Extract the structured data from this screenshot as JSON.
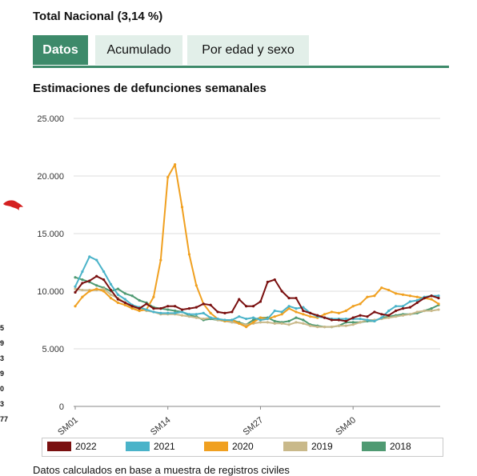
{
  "header": {
    "title": "Total Nacional (3,14 %)"
  },
  "tabs": [
    {
      "label": "Datos",
      "active": true
    },
    {
      "label": "Acumulado",
      "active": false
    },
    {
      "label": "Por edad y sexo",
      "active": false
    }
  ],
  "section_title": "Estimaciones de defunciones semanales",
  "left_edge_digits": [
    "5",
    "9",
    "3",
    "9",
    "0",
    "3",
    "77"
  ],
  "footer_text": "Datos calculados en base a muestra de registros civiles",
  "chart_data": {
    "type": "line",
    "title": "Estimaciones de defunciones semanales",
    "x": [
      "SM01",
      "SM02",
      "SM03",
      "SM04",
      "SM05",
      "SM06",
      "SM07",
      "SM08",
      "SM09",
      "SM10",
      "SM11",
      "SM12",
      "SM13",
      "SM14",
      "SM15",
      "SM16",
      "SM17",
      "SM18",
      "SM19",
      "SM20",
      "SM21",
      "SM22",
      "SM23",
      "SM24",
      "SM25",
      "SM26",
      "SM27",
      "SM28",
      "SM29",
      "SM30",
      "SM31",
      "SM32",
      "SM33",
      "SM34",
      "SM35",
      "SM36",
      "SM37",
      "SM38",
      "SM39",
      "SM40",
      "SM41",
      "SM42",
      "SM43",
      "SM44",
      "SM45",
      "SM46",
      "SM47",
      "SM48",
      "SM49",
      "SM50",
      "SM51",
      "SM52"
    ],
    "x_tick_labels": [
      "SM01",
      "SM14",
      "SM27",
      "SM40"
    ],
    "y_ticks": [
      0,
      5000,
      10000,
      15000,
      20000,
      25000
    ],
    "y_tick_labels": [
      "0",
      "5.000",
      "10.000",
      "15.000",
      "20.000",
      "25.000"
    ],
    "ylim": [
      0,
      25000
    ],
    "grid": true,
    "legend_position": "bottom",
    "series": [
      {
        "name": "2022",
        "color": "#7a1010",
        "values": [
          9900,
          10700,
          10900,
          11300,
          11000,
          10100,
          9300,
          9000,
          8700,
          8500,
          8900,
          8500,
          8500,
          8700,
          8700,
          8400,
          8500,
          8600,
          8900,
          8800,
          8200,
          8100,
          8200,
          9300,
          8700,
          8700,
          9100,
          10800,
          11000,
          10000,
          9400,
          9400,
          8300,
          8100,
          7900,
          7700,
          7500,
          7500,
          7400,
          7700,
          7900,
          7800,
          8200,
          8000,
          7900,
          8300,
          8500,
          8600,
          9000,
          9400,
          9600,
          9400
        ]
      },
      {
        "name": "2021",
        "color": "#4ab3c9",
        "values": [
          10400,
          11700,
          13000,
          12700,
          11700,
          10600,
          9700,
          9300,
          8800,
          8600,
          8400,
          8200,
          8100,
          8100,
          8100,
          8200,
          8000,
          8000,
          8100,
          7700,
          7600,
          7500,
          7500,
          7800,
          7600,
          7700,
          7500,
          7600,
          8300,
          8200,
          8700,
          8500,
          8600,
          8100,
          7800,
          7700,
          7600,
          7600,
          7600,
          7600,
          7600,
          7500,
          7400,
          7700,
          8300,
          8700,
          8700,
          9100,
          9200,
          9500,
          9600,
          9600
        ]
      },
      {
        "name": "2020",
        "color": "#f0a020",
        "values": [
          8700,
          9500,
          10000,
          10200,
          10000,
          9400,
          9000,
          8800,
          8500,
          8300,
          8400,
          9500,
          12700,
          19900,
          21000,
          17300,
          13200,
          10500,
          8900,
          8100,
          7600,
          7400,
          7500,
          7200,
          6900,
          7300,
          7700,
          7600,
          7800,
          8000,
          8500,
          8200,
          8000,
          7800,
          7700,
          8000,
          8200,
          8100,
          8300,
          8700,
          8900,
          9500,
          9600,
          10300,
          10100,
          9800,
          9700,
          9600,
          9500,
          9400,
          9300,
          8900
        ]
      },
      {
        "name": "2019",
        "color": "#c9b98a",
        "values": [
          10200,
          10100,
          10100,
          10100,
          10200,
          9700,
          9400,
          9000,
          8600,
          8500,
          8300,
          8200,
          8000,
          8000,
          8000,
          7900,
          7800,
          7700,
          7600,
          7700,
          7500,
          7400,
          7300,
          7200,
          7100,
          7200,
          7300,
          7300,
          7200,
          7200,
          7100,
          7300,
          7200,
          7000,
          6900,
          6900,
          6900,
          7000,
          7000,
          7100,
          7300,
          7500,
          7500,
          7600,
          7700,
          7800,
          7900,
          8000,
          8200,
          8300,
          8300,
          8400
        ]
      },
      {
        "name": "2018",
        "color": "#4f9a72",
        "values": [
          11200,
          11000,
          10800,
          10500,
          10300,
          10000,
          10200,
          9800,
          9600,
          9200,
          9000,
          8600,
          8500,
          8400,
          8300,
          8200,
          7900,
          7800,
          7500,
          7600,
          7500,
          7400,
          7500,
          7300,
          7100,
          7500,
          7700,
          7700,
          7400,
          7300,
          7400,
          7700,
          7500,
          7100,
          7000,
          6900,
          6900,
          7000,
          7300,
          7300,
          7300,
          7400,
          7400,
          7700,
          7800,
          7900,
          8000,
          8000,
          8100,
          8300,
          8500,
          8800
        ]
      }
    ]
  }
}
